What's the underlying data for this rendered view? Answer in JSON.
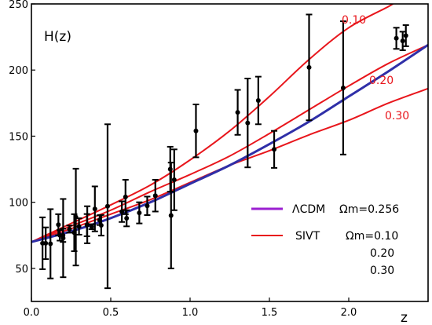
{
  "chart_data": {
    "type": "scatter",
    "panel_label": "H(z)",
    "xlabel": "z",
    "ylabel": "",
    "xlim": [
      0.0,
      2.5
    ],
    "ylim": [
      25,
      250
    ],
    "x_ticks": [
      0.0,
      0.5,
      1.0,
      1.5,
      2.0
    ],
    "x_tick_labels": [
      "0.0",
      "0.5",
      "1.0",
      "1.5",
      "2.0"
    ],
    "y_ticks": [
      50,
      100,
      150,
      200,
      250
    ],
    "y_tick_labels": [
      "50",
      "100",
      "150",
      "200",
      "250"
    ],
    "grid": false,
    "legend_position": "bottom-right",
    "colors": {
      "data": "#000000",
      "lcdm": "#2f2fa8",
      "lcdm_legend": "#9b1fd1",
      "sivt": "#e8161c"
    },
    "legend": {
      "lcdm_label": "ΛCDM",
      "lcdm_param": "Ωm=0.256",
      "sivt_label": "SIVT",
      "sivt_params": [
        "Ωm=0.10",
        "0.20",
        "0.30"
      ]
    },
    "curve_labels": [
      "0.10",
      "0.20",
      "0.30"
    ],
    "series": [
      {
        "type": "errorbar",
        "points": [
          {
            "x": 0.07,
            "y": 69,
            "err": 19.6
          },
          {
            "x": 0.09,
            "y": 69,
            "err": 12
          },
          {
            "x": 0.12,
            "y": 68.6,
            "err": 26.2
          },
          {
            "x": 0.17,
            "y": 83,
            "err": 8
          },
          {
            "x": 0.179,
            "y": 75,
            "err": 4
          },
          {
            "x": 0.199,
            "y": 75,
            "err": 5
          },
          {
            "x": 0.2,
            "y": 72.9,
            "err": 29.6
          },
          {
            "x": 0.24,
            "y": 79.7,
            "err": 2.7
          },
          {
            "x": 0.27,
            "y": 77,
            "err": 14
          },
          {
            "x": 0.28,
            "y": 88.8,
            "err": 36.6
          },
          {
            "x": 0.3,
            "y": 81.7,
            "err": 6.2
          },
          {
            "x": 0.35,
            "y": 82.7,
            "err": 8.4
          },
          {
            "x": 0.352,
            "y": 83,
            "err": 14
          },
          {
            "x": 0.38,
            "y": 81.5,
            "err": 1.9
          },
          {
            "x": 0.4,
            "y": 95,
            "err": 17
          },
          {
            "x": 0.43,
            "y": 86.5,
            "err": 3.7
          },
          {
            "x": 0.44,
            "y": 82.6,
            "err": 7.8
          },
          {
            "x": 0.48,
            "y": 97,
            "err": 62
          },
          {
            "x": 0.57,
            "y": 92.9,
            "err": 7.8
          },
          {
            "x": 0.593,
            "y": 104,
            "err": 13
          },
          {
            "x": 0.6,
            "y": 87.9,
            "err": 6.1
          },
          {
            "x": 0.68,
            "y": 92,
            "err": 8
          },
          {
            "x": 0.73,
            "y": 97.3,
            "err": 7
          },
          {
            "x": 0.781,
            "y": 105,
            "err": 12
          },
          {
            "x": 0.875,
            "y": 125,
            "err": 17
          },
          {
            "x": 0.88,
            "y": 90,
            "err": 40
          },
          {
            "x": 0.9,
            "y": 117,
            "err": 23
          },
          {
            "x": 1.037,
            "y": 154,
            "err": 20
          },
          {
            "x": 1.3,
            "y": 168,
            "err": 17
          },
          {
            "x": 1.363,
            "y": 160,
            "err": 33.6
          },
          {
            "x": 1.43,
            "y": 177,
            "err": 18
          },
          {
            "x": 1.53,
            "y": 140,
            "err": 14
          },
          {
            "x": 1.75,
            "y": 202,
            "err": 40
          },
          {
            "x": 1.965,
            "y": 186.5,
            "err": 50.4
          },
          {
            "x": 2.3,
            "y": 224,
            "err": 8
          },
          {
            "x": 2.34,
            "y": 222,
            "err": 7
          },
          {
            "x": 2.36,
            "y": 226,
            "err": 8
          }
        ]
      },
      {
        "type": "line",
        "model": "lcdm",
        "x": [
          0.0,
          0.25,
          0.5,
          0.75,
          1.0,
          1.25,
          1.5,
          1.75,
          2.0,
          2.25,
          2.5
        ],
        "y": [
          70,
          78,
          88,
          100,
          114,
          128,
          144,
          161,
          180,
          199,
          219
        ]
      },
      {
        "type": "line",
        "model": "sivt",
        "omega": "0.10",
        "x": [
          0.0,
          0.25,
          0.5,
          0.75,
          1.0,
          1.25,
          1.5,
          1.75,
          2.0,
          2.25,
          2.3
        ],
        "y": [
          70,
          84,
          98,
          113,
          132,
          154,
          180,
          208,
          232,
          248,
          252
        ]
      },
      {
        "type": "line",
        "model": "sivt",
        "omega": "0.20",
        "x": [
          0.0,
          0.25,
          0.5,
          0.75,
          1.0,
          1.25,
          1.5,
          1.75,
          2.0,
          2.25,
          2.5
        ],
        "y": [
          70,
          82,
          94,
          108,
          121,
          135,
          152,
          170,
          188,
          205,
          219
        ]
      },
      {
        "type": "line",
        "model": "sivt",
        "omega": "0.30",
        "x": [
          0.0,
          0.25,
          0.5,
          0.75,
          1.0,
          1.25,
          1.5,
          1.75,
          2.0,
          2.25,
          2.5
        ],
        "y": [
          70,
          80,
          91,
          102,
          115,
          128,
          139,
          151,
          162,
          175,
          186
        ]
      }
    ]
  }
}
